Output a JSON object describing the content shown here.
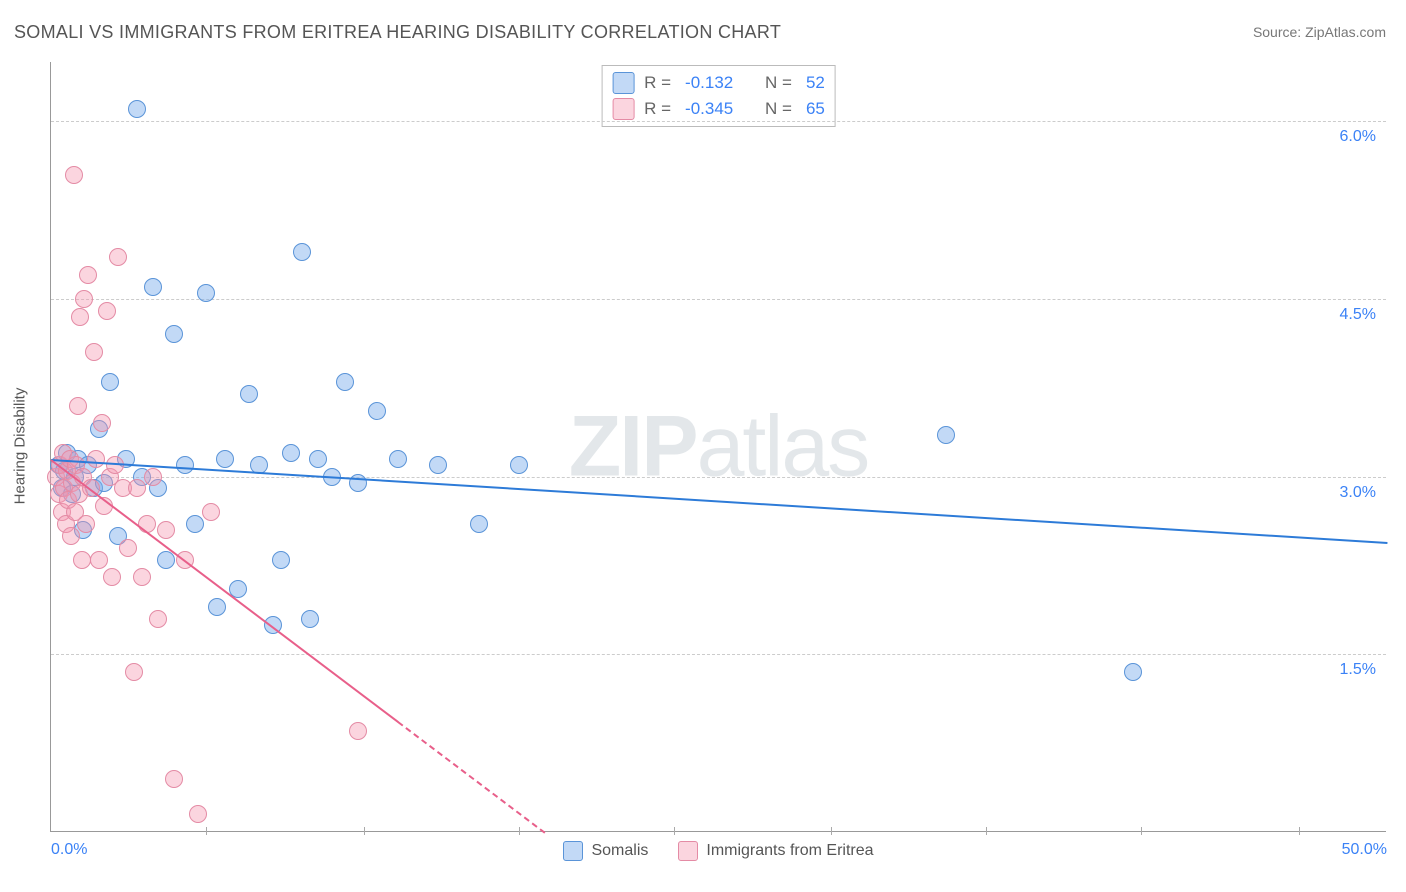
{
  "chart": {
    "type": "scatter-with-regression",
    "title": "SOMALI VS IMMIGRANTS FROM ERITREA HEARING DISABILITY CORRELATION CHART",
    "source_label": "Source: ZipAtlas.com",
    "y_axis_title": "Hearing Disability",
    "watermark": {
      "bold": "ZIP",
      "light": "atlas"
    },
    "background_color": "#ffffff",
    "grid_color": "#cccccc",
    "axis_color": "#999999",
    "x_range": [
      0,
      50
    ],
    "y_range": [
      0,
      6.5
    ],
    "x_ticks": [
      {
        "v": 0,
        "label": "0.0%"
      },
      {
        "v": 50,
        "label": "50.0%"
      }
    ],
    "x_minor_ticks": [
      5.8,
      11.7,
      17.5,
      23.3,
      29.2,
      35.0,
      40.8,
      46.7
    ],
    "y_ticks": [
      {
        "v": 1.5,
        "label": "1.5%"
      },
      {
        "v": 3.0,
        "label": "3.0%"
      },
      {
        "v": 4.5,
        "label": "4.5%"
      },
      {
        "v": 6.0,
        "label": "6.0%"
      }
    ],
    "series": [
      {
        "name": "Somalis",
        "color_fill": "rgba(120,170,235,0.45)",
        "color_stroke": "#5a94d8",
        "line_color": "#2d7bd8",
        "line_width": 2.5,
        "marker_radius": 9,
        "R": "-0.132",
        "N": "52",
        "regression": {
          "x1": 0,
          "y1": 3.15,
          "x2": 50,
          "y2": 2.45,
          "dash": false
        },
        "points": [
          [
            0.3,
            3.1
          ],
          [
            0.4,
            2.9
          ],
          [
            0.5,
            3.05
          ],
          [
            0.6,
            3.2
          ],
          [
            0.8,
            2.85
          ],
          [
            0.9,
            3.0
          ],
          [
            1.0,
            3.15
          ],
          [
            1.2,
            2.55
          ],
          [
            1.4,
            3.1
          ],
          [
            1.6,
            2.9
          ],
          [
            1.8,
            3.4
          ],
          [
            2.0,
            2.95
          ],
          [
            2.2,
            3.8
          ],
          [
            2.5,
            2.5
          ],
          [
            2.8,
            3.15
          ],
          [
            3.2,
            6.1
          ],
          [
            3.4,
            3.0
          ],
          [
            3.8,
            4.6
          ],
          [
            4.0,
            2.9
          ],
          [
            4.3,
            2.3
          ],
          [
            4.6,
            4.2
          ],
          [
            5.0,
            3.1
          ],
          [
            5.4,
            2.6
          ],
          [
            5.8,
            4.55
          ],
          [
            6.2,
            1.9
          ],
          [
            6.5,
            3.15
          ],
          [
            7.0,
            2.05
          ],
          [
            7.4,
            3.7
          ],
          [
            7.8,
            3.1
          ],
          [
            8.3,
            1.75
          ],
          [
            8.6,
            2.3
          ],
          [
            9.0,
            3.2
          ],
          [
            9.4,
            4.9
          ],
          [
            9.7,
            1.8
          ],
          [
            10.0,
            3.15
          ],
          [
            10.5,
            3.0
          ],
          [
            11.0,
            3.8
          ],
          [
            11.5,
            2.95
          ],
          [
            12.2,
            3.55
          ],
          [
            13.0,
            3.15
          ],
          [
            14.5,
            3.1
          ],
          [
            16.0,
            2.6
          ],
          [
            17.5,
            3.1
          ],
          [
            33.5,
            3.35
          ],
          [
            40.5,
            1.35
          ]
        ]
      },
      {
        "name": "Immigrants from Eritrea",
        "color_fill": "rgba(245,150,175,0.40)",
        "color_stroke": "#e48ba5",
        "line_color": "#e85f8a",
        "line_width": 2.5,
        "marker_radius": 9,
        "R": "-0.345",
        "N": "65",
        "regression": {
          "x1": 0,
          "y1": 3.15,
          "x2": 18.5,
          "y2": 0,
          "dash_after_x": 13
        },
        "points": [
          [
            0.2,
            3.0
          ],
          [
            0.3,
            2.85
          ],
          [
            0.35,
            3.1
          ],
          [
            0.4,
            2.7
          ],
          [
            0.45,
            3.2
          ],
          [
            0.5,
            2.9
          ],
          [
            0.55,
            2.6
          ],
          [
            0.6,
            3.05
          ],
          [
            0.65,
            2.8
          ],
          [
            0.7,
            3.15
          ],
          [
            0.75,
            2.5
          ],
          [
            0.8,
            2.95
          ],
          [
            0.85,
            5.55
          ],
          [
            0.9,
            2.7
          ],
          [
            0.95,
            3.1
          ],
          [
            1.0,
            3.6
          ],
          [
            1.05,
            2.85
          ],
          [
            1.1,
            4.35
          ],
          [
            1.15,
            2.3
          ],
          [
            1.2,
            3.0
          ],
          [
            1.25,
            4.5
          ],
          [
            1.3,
            2.6
          ],
          [
            1.4,
            4.7
          ],
          [
            1.5,
            2.9
          ],
          [
            1.6,
            4.05
          ],
          [
            1.7,
            3.15
          ],
          [
            1.8,
            2.3
          ],
          [
            1.9,
            3.45
          ],
          [
            2.0,
            2.75
          ],
          [
            2.1,
            4.4
          ],
          [
            2.2,
            3.0
          ],
          [
            2.3,
            2.15
          ],
          [
            2.4,
            3.1
          ],
          [
            2.5,
            4.85
          ],
          [
            2.7,
            2.9
          ],
          [
            2.9,
            2.4
          ],
          [
            3.1,
            1.35
          ],
          [
            3.2,
            2.9
          ],
          [
            3.4,
            2.15
          ],
          [
            3.6,
            2.6
          ],
          [
            3.8,
            3.0
          ],
          [
            4.0,
            1.8
          ],
          [
            4.3,
            2.55
          ],
          [
            4.6,
            0.45
          ],
          [
            5.0,
            2.3
          ],
          [
            5.5,
            0.15
          ],
          [
            6.0,
            2.7
          ],
          [
            11.5,
            0.85
          ]
        ]
      }
    ]
  }
}
